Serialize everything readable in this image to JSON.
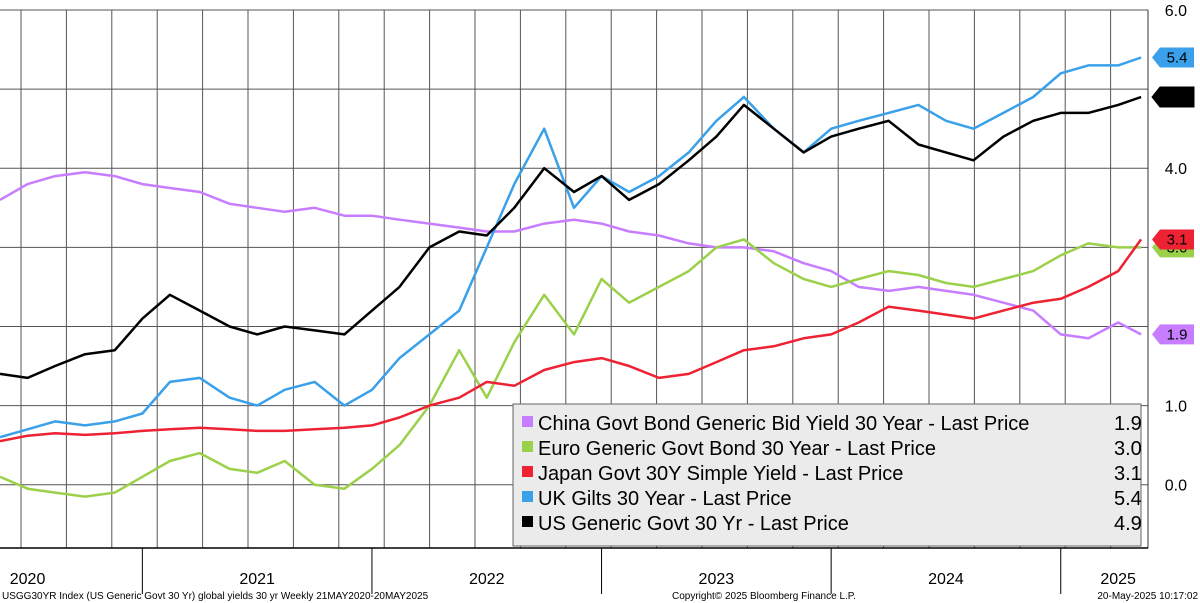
{
  "footer": {
    "left": "USGG30YR Index (US Generic Govt 30 Yr) global yields 30 yr  Weekly 21MAY2020-20MAY2025",
    "center": "Copyright© 2025 Bloomberg Finance L.P.",
    "right": "20-May-2025 10:17:02"
  },
  "chart_data": {
    "type": "line",
    "title": "",
    "ylim": [
      -0.8,
      6.0
    ],
    "yticks": [
      {
        "v": 6.0,
        "label": "6.0"
      },
      {
        "v": 4.0,
        "label": "4.0"
      },
      {
        "v": 1.0,
        "label": "1.0"
      },
      {
        "v": 0.0,
        "label": "0.0"
      }
    ],
    "ygrid": [
      0,
      1,
      2,
      3,
      4,
      5,
      6
    ],
    "xlim": [
      2020.38,
      2025.38
    ],
    "xtick_labels": [
      {
        "x": 2020.5,
        "label": "2020"
      },
      {
        "x": 2021.5,
        "label": "2021"
      },
      {
        "x": 2022.5,
        "label": "2022"
      },
      {
        "x": 2023.5,
        "label": "2023"
      },
      {
        "x": 2024.5,
        "label": "2024"
      },
      {
        "x": 2025.25,
        "label": "2025"
      }
    ],
    "year_boundaries": [
      2021,
      2022,
      2023,
      2024,
      2025
    ],
    "series": [
      {
        "name": "China Govt Bond Generic Bid Yield 30 Year - Last Price",
        "last": "1.9",
        "color": "#c77dff",
        "x": [
          2020.38,
          2020.5,
          2020.62,
          2020.75,
          2020.88,
          2021.0,
          2021.12,
          2021.25,
          2021.38,
          2021.5,
          2021.62,
          2021.75,
          2021.88,
          2022.0,
          2022.12,
          2022.25,
          2022.38,
          2022.5,
          2022.62,
          2022.75,
          2022.88,
          2023.0,
          2023.12,
          2023.25,
          2023.38,
          2023.5,
          2023.62,
          2023.75,
          2023.88,
          2024.0,
          2024.12,
          2024.25,
          2024.38,
          2024.5,
          2024.62,
          2024.75,
          2024.88,
          2025.0,
          2025.12,
          2025.25,
          2025.35
        ],
        "values": [
          3.6,
          3.8,
          3.9,
          3.95,
          3.9,
          3.8,
          3.75,
          3.7,
          3.55,
          3.5,
          3.45,
          3.5,
          3.4,
          3.4,
          3.35,
          3.3,
          3.25,
          3.2,
          3.2,
          3.3,
          3.35,
          3.3,
          3.2,
          3.15,
          3.05,
          3.0,
          3.0,
          2.95,
          2.8,
          2.7,
          2.5,
          2.45,
          2.5,
          2.45,
          2.4,
          2.3,
          2.2,
          1.9,
          1.85,
          2.05,
          1.9
        ]
      },
      {
        "name": "Euro Generic Govt Bond 30 Year - Last Price",
        "last": "3.0",
        "color": "#9bd14a",
        "x": [
          2020.38,
          2020.5,
          2020.62,
          2020.75,
          2020.88,
          2021.0,
          2021.12,
          2021.25,
          2021.38,
          2021.5,
          2021.62,
          2021.75,
          2021.88,
          2022.0,
          2022.12,
          2022.25,
          2022.38,
          2022.5,
          2022.62,
          2022.75,
          2022.88,
          2023.0,
          2023.12,
          2023.25,
          2023.38,
          2023.5,
          2023.62,
          2023.75,
          2023.88,
          2024.0,
          2024.12,
          2024.25,
          2024.38,
          2024.5,
          2024.62,
          2024.75,
          2024.88,
          2025.0,
          2025.12,
          2025.25,
          2025.35
        ],
        "values": [
          0.1,
          -0.05,
          -0.1,
          -0.15,
          -0.1,
          0.1,
          0.3,
          0.4,
          0.2,
          0.15,
          0.3,
          0.0,
          -0.05,
          0.2,
          0.5,
          1.0,
          1.7,
          1.1,
          1.8,
          2.4,
          1.9,
          2.6,
          2.3,
          2.5,
          2.7,
          3.0,
          3.1,
          2.8,
          2.6,
          2.5,
          2.6,
          2.7,
          2.65,
          2.55,
          2.5,
          2.6,
          2.7,
          2.9,
          3.05,
          3.0,
          3.0
        ]
      },
      {
        "name": "Japan Govt 30Y Simple Yield - Last Price",
        "last": "3.1",
        "color": "#ee2233",
        "x": [
          2020.38,
          2020.5,
          2020.62,
          2020.75,
          2020.88,
          2021.0,
          2021.12,
          2021.25,
          2021.38,
          2021.5,
          2021.62,
          2021.75,
          2021.88,
          2022.0,
          2022.12,
          2022.25,
          2022.38,
          2022.5,
          2022.62,
          2022.75,
          2022.88,
          2023.0,
          2023.12,
          2023.25,
          2023.38,
          2023.5,
          2023.62,
          2023.75,
          2023.88,
          2024.0,
          2024.12,
          2024.25,
          2024.38,
          2024.5,
          2024.62,
          2024.75,
          2024.88,
          2025.0,
          2025.12,
          2025.25,
          2025.35
        ],
        "values": [
          0.55,
          0.62,
          0.65,
          0.63,
          0.65,
          0.68,
          0.7,
          0.72,
          0.7,
          0.68,
          0.68,
          0.7,
          0.72,
          0.75,
          0.85,
          1.0,
          1.1,
          1.3,
          1.25,
          1.45,
          1.55,
          1.6,
          1.5,
          1.35,
          1.4,
          1.55,
          1.7,
          1.75,
          1.85,
          1.9,
          2.05,
          2.25,
          2.2,
          2.15,
          2.1,
          2.2,
          2.3,
          2.35,
          2.5,
          2.7,
          3.1
        ]
      },
      {
        "name": "UK Gilts 30 Year - Last Price",
        "last": "5.4",
        "color": "#3aa0ea",
        "x": [
          2020.38,
          2020.5,
          2020.62,
          2020.75,
          2020.88,
          2021.0,
          2021.12,
          2021.25,
          2021.38,
          2021.5,
          2021.62,
          2021.75,
          2021.88,
          2022.0,
          2022.12,
          2022.25,
          2022.38,
          2022.5,
          2022.62,
          2022.75,
          2022.88,
          2023.0,
          2023.12,
          2023.25,
          2023.38,
          2023.5,
          2023.62,
          2023.75,
          2023.88,
          2024.0,
          2024.12,
          2024.25,
          2024.38,
          2024.5,
          2024.62,
          2024.75,
          2024.88,
          2025.0,
          2025.12,
          2025.25,
          2025.35
        ],
        "values": [
          0.6,
          0.7,
          0.8,
          0.75,
          0.8,
          0.9,
          1.3,
          1.35,
          1.1,
          1.0,
          1.2,
          1.3,
          1.0,
          1.2,
          1.6,
          1.9,
          2.2,
          3.0,
          3.8,
          4.5,
          3.5,
          3.9,
          3.7,
          3.9,
          4.2,
          4.6,
          4.9,
          4.5,
          4.2,
          4.5,
          4.6,
          4.7,
          4.8,
          4.6,
          4.5,
          4.7,
          4.9,
          5.2,
          5.3,
          5.3,
          5.4
        ]
      },
      {
        "name": "US Generic Govt 30 Yr - Last Price",
        "last": "4.9",
        "color": "#000000",
        "x": [
          2020.38,
          2020.5,
          2020.62,
          2020.75,
          2020.88,
          2021.0,
          2021.12,
          2021.25,
          2021.38,
          2021.5,
          2021.62,
          2021.75,
          2021.88,
          2022.0,
          2022.12,
          2022.25,
          2022.38,
          2022.5,
          2022.62,
          2022.75,
          2022.88,
          2023.0,
          2023.12,
          2023.25,
          2023.38,
          2023.5,
          2023.62,
          2023.75,
          2023.88,
          2024.0,
          2024.12,
          2024.25,
          2024.38,
          2024.5,
          2024.62,
          2024.75,
          2024.88,
          2025.0,
          2025.12,
          2025.25,
          2025.35
        ],
        "values": [
          1.4,
          1.35,
          1.5,
          1.65,
          1.7,
          2.1,
          2.4,
          2.2,
          2.0,
          1.9,
          2.0,
          1.95,
          1.9,
          2.2,
          2.5,
          3.0,
          3.2,
          3.15,
          3.5,
          4.0,
          3.7,
          3.9,
          3.6,
          3.8,
          4.1,
          4.4,
          4.8,
          4.5,
          4.2,
          4.4,
          4.5,
          4.6,
          4.3,
          4.2,
          4.1,
          4.4,
          4.6,
          4.7,
          4.7,
          4.8,
          4.9
        ]
      }
    ]
  }
}
